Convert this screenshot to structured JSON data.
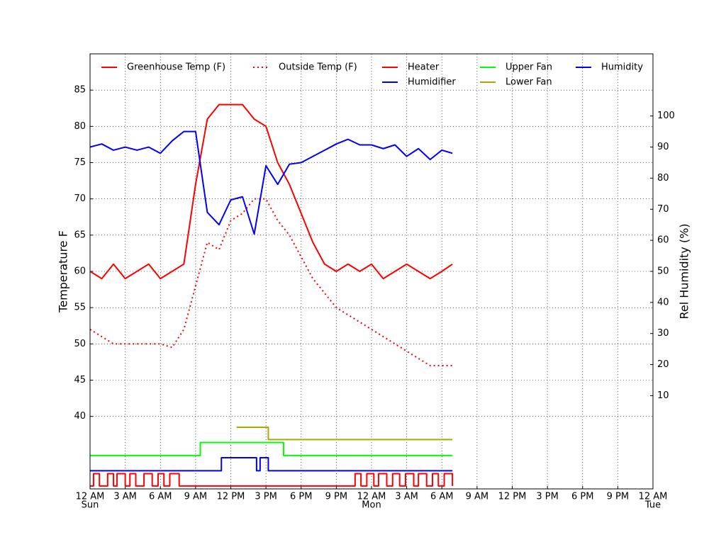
{
  "chart_data": {
    "type": "line",
    "ylabel": "Temperature F",
    "y2label": "Rel Humidity (%)",
    "xlim": [
      0,
      48
    ],
    "xticks": [
      {
        "value": 0,
        "label": "12 AM"
      },
      {
        "value": 3,
        "label": "3 AM"
      },
      {
        "value": 6,
        "label": "6 AM"
      },
      {
        "value": 9,
        "label": "9 AM"
      },
      {
        "value": 12,
        "label": "12 PM"
      },
      {
        "value": 15,
        "label": "3 PM"
      },
      {
        "value": 18,
        "label": "6 PM"
      },
      {
        "value": 21,
        "label": "9 PM"
      },
      {
        "value": 24,
        "label": "12 AM"
      },
      {
        "value": 27,
        "label": "3 AM"
      },
      {
        "value": 30,
        "label": "6 AM"
      },
      {
        "value": 33,
        "label": "9 AM"
      },
      {
        "value": 36,
        "label": "12 PM"
      },
      {
        "value": 39,
        "label": "3 PM"
      },
      {
        "value": 42,
        "label": "6 PM"
      },
      {
        "value": 45,
        "label": "9 PM"
      },
      {
        "value": 48,
        "label": "12 AM"
      }
    ],
    "day_ticks": [
      {
        "value": 0,
        "label": "Sun"
      },
      {
        "value": 24,
        "label": "Mon"
      },
      {
        "value": 48,
        "label": "Tue"
      }
    ],
    "ylim": [
      30,
      90
    ],
    "yticks": [
      40,
      45,
      50,
      55,
      60,
      65,
      70,
      75,
      80,
      85
    ],
    "y2lim": [
      -20,
      120
    ],
    "y2ticks": [
      10,
      20,
      30,
      40,
      50,
      60,
      70,
      80,
      90,
      100
    ],
    "grid": true,
    "x": [
      0,
      1,
      2,
      3,
      4,
      5,
      6,
      7,
      8,
      9,
      10,
      11,
      12,
      13,
      14,
      15,
      16,
      17,
      18,
      19,
      20,
      21,
      22,
      23,
      24,
      25,
      26,
      27,
      28,
      29,
      30,
      30.9
    ],
    "series": [
      {
        "name": "Greenhouse Temp (F)",
        "color": "#ff0000",
        "linestyle": "solid",
        "values": [
          60,
          59,
          61,
          59,
          60,
          61,
          59,
          60,
          61,
          72,
          81,
          83,
          83,
          83,
          81,
          80,
          75,
          72,
          68,
          64,
          61,
          60,
          61,
          60,
          61,
          59,
          60,
          61,
          60,
          59,
          60,
          61
        ]
      },
      {
        "name": "Outside Temp (F)",
        "color": "#ff0000",
        "linestyle": "dotted",
        "values": [
          52,
          51,
          50,
          50,
          50,
          50,
          50,
          49.5,
          52,
          58,
          64,
          63,
          67,
          68,
          70,
          70,
          67,
          65,
          62,
          59,
          57,
          55,
          54,
          53,
          52,
          51,
          50,
          49,
          48,
          47,
          47,
          47
        ]
      },
      {
        "name": "Heater",
        "color": "#ff0000",
        "linestyle": "solid",
        "drawstyle": "steps",
        "x": [
          0,
          0.3,
          0.8,
          1.5,
          2.0,
          2.3,
          3.0,
          3.4,
          3.9,
          4.6,
          5.3,
          5.8,
          6.3,
          6.8,
          7.6,
          22.6,
          23.1,
          23.6,
          24.2,
          24.6,
          25.3,
          25.8,
          26.4,
          26.9,
          27.6,
          28.0,
          28.7,
          29.2,
          29.7,
          30.2,
          30.9
        ],
        "values": [
          30.4,
          32.1,
          30.4,
          32.1,
          30.4,
          32.1,
          30.4,
          32.1,
          30.4,
          32.1,
          30.4,
          32.1,
          30.4,
          32.1,
          30.4,
          32.1,
          30.4,
          32.1,
          30.4,
          32.1,
          30.4,
          32.1,
          30.4,
          32.1,
          30.4,
          32.1,
          30.4,
          32.1,
          30.4,
          32.1,
          30.4
        ]
      },
      {
        "name": "Humidifier",
        "color": "#0000ff",
        "linestyle": "solid",
        "drawstyle": "steps",
        "x": [
          0,
          11.2,
          14.2,
          14.5,
          15.2,
          30.9
        ],
        "values": [
          32.5,
          34.3,
          32.5,
          34.3,
          32.5,
          32.5
        ]
      },
      {
        "name": "Upper Fan",
        "color": "#00ff00",
        "linestyle": "solid",
        "drawstyle": "steps",
        "x": [
          0,
          9.4,
          16.5,
          30.9
        ],
        "values": [
          34.6,
          36.4,
          34.6,
          34.6
        ]
      },
      {
        "name": "Lower Fan",
        "color": "#aaaa00",
        "linestyle": "solid",
        "drawstyle": "steps",
        "x": [
          12.5,
          15.2,
          30.9
        ],
        "values": [
          38.5,
          36.8,
          36.8
        ]
      },
      {
        "name": "Humidity",
        "color": "#0000ff",
        "linestyle": "solid",
        "axis": "y2",
        "values": [
          90,
          91,
          89,
          90,
          89,
          90,
          88,
          92,
          95,
          95,
          69,
          65,
          73,
          74,
          62,
          84,
          78,
          84.5,
          85,
          87,
          89,
          91,
          92.5,
          90.7,
          90.7,
          89.5,
          90.7,
          87,
          89.5,
          86,
          89,
          88
        ]
      }
    ]
  }
}
